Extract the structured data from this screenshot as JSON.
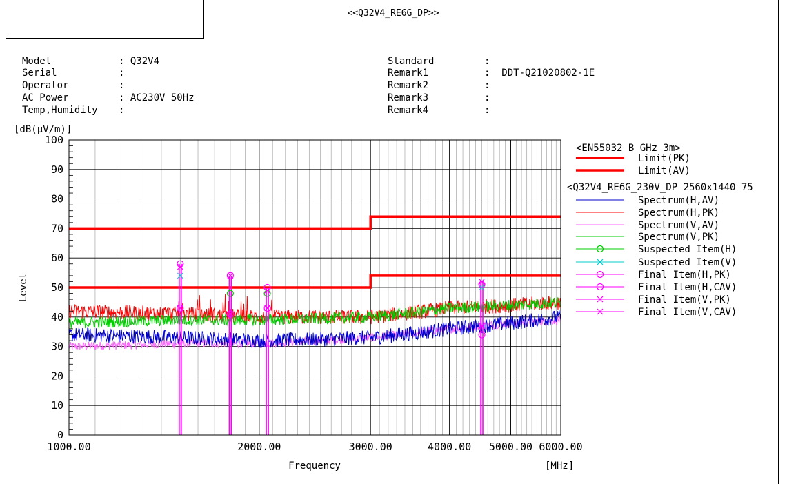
{
  "report": {
    "title": "<<Q32V4_RE6G_DP>>"
  },
  "info_left": [
    {
      "label": "Model",
      "value": ": Q32V4"
    },
    {
      "label": "Serial",
      "value": ":"
    },
    {
      "label": "Operator",
      "value": ":"
    },
    {
      "label": "AC Power",
      "value": ": AC230V 50Hz"
    },
    {
      "label": "Temp,Humidity",
      "value": ":"
    }
  ],
  "info_right": [
    {
      "label": "Standard",
      "value": ":"
    },
    {
      "label": "Remark1",
      "value": ":  DDT-Q21020802-1E"
    },
    {
      "label": "Remark2",
      "value": ":"
    },
    {
      "label": "Remark3",
      "value": ":"
    },
    {
      "label": "Remark4",
      "value": ":"
    }
  ],
  "colors": {
    "limit": "#ff0000",
    "spectrum_h_av": "#0000cc",
    "spectrum_h_pk": "#ff0000",
    "spectrum_v_av": "#ff66ff",
    "spectrum_v_pk": "#00cc00",
    "suspected_h": "#00cc00",
    "suspected_v": "#00cccc",
    "final": "#ff00ff"
  },
  "chart_data": {
    "type": "line",
    "x_scale": "log",
    "xlim": [
      1000,
      6000
    ],
    "ylim": [
      0,
      100
    ],
    "x_ticks": [
      1000,
      2000,
      3000,
      4000,
      5000,
      6000
    ],
    "x_tick_labels": [
      "1000.00",
      "2000.00",
      "3000.00",
      "4000.00",
      "5000.00",
      "6000.00"
    ],
    "y_ticks": [
      0,
      10,
      20,
      30,
      40,
      50,
      60,
      70,
      80,
      90,
      100
    ],
    "y_tick_labels": [
      "0",
      "10",
      "20",
      "30",
      "40",
      "50",
      "60",
      "70",
      "80",
      "90",
      "100"
    ],
    "xlabel": "Frequency",
    "xunit": "[MHz]",
    "ylabel": "Level",
    "yunit": "[dB(μV/m)]",
    "grid": true,
    "legend_position": "right",
    "legend_title": "<EN55032 B GHz 3m>",
    "legend_subtitle": "<Q32V4_RE6G_230V_DP 2560x1440 75",
    "limits": [
      {
        "name": "Limit(PK)",
        "points": [
          [
            1000,
            70
          ],
          [
            3000,
            70
          ],
          [
            3000,
            74
          ],
          [
            6000,
            74
          ]
        ]
      },
      {
        "name": "Limit(AV)",
        "points": [
          [
            1000,
            50
          ],
          [
            3000,
            50
          ],
          [
            3000,
            54
          ],
          [
            6000,
            54
          ]
        ]
      }
    ],
    "spectra": [
      {
        "name": "Spectrum(H,AV)",
        "color_key": "spectrum_h_av",
        "envelope": [
          [
            1000,
            34
          ],
          [
            1500,
            33
          ],
          [
            2000,
            32
          ],
          [
            3000,
            33
          ],
          [
            4000,
            36
          ],
          [
            5000,
            38
          ],
          [
            6000,
            40
          ]
        ],
        "noise": 2.5
      },
      {
        "name": "Spectrum(H,PK)",
        "color_key": "spectrum_h_pk",
        "envelope": [
          [
            1000,
            42
          ],
          [
            1500,
            41
          ],
          [
            2000,
            40
          ],
          [
            3000,
            40
          ],
          [
            4000,
            43
          ],
          [
            5000,
            44
          ],
          [
            6000,
            45
          ]
        ],
        "noise": 2.5
      },
      {
        "name": "Spectrum(V,AV)",
        "color_key": "spectrum_v_av",
        "envelope": [
          [
            1000,
            30
          ],
          [
            1500,
            31
          ],
          [
            2000,
            31
          ],
          [
            3000,
            33
          ],
          [
            4000,
            36
          ],
          [
            5000,
            38
          ],
          [
            6000,
            39
          ]
        ],
        "noise": 1.5
      },
      {
        "name": "Spectrum(V,PK)",
        "color_key": "spectrum_v_pk",
        "envelope": [
          [
            1000,
            38
          ],
          [
            1500,
            39
          ],
          [
            2000,
            39
          ],
          [
            3000,
            40
          ],
          [
            4000,
            43
          ],
          [
            5000,
            44
          ],
          [
            6000,
            45
          ]
        ],
        "noise": 2
      }
    ],
    "final_items": [
      {
        "freq": 1500,
        "h_pk": 58,
        "h_cav": 43,
        "v_pk": 57,
        "v_cav": 43,
        "suspected_v": 54
      },
      {
        "freq": 1800,
        "h_pk": 54,
        "h_cav": 41,
        "v_pk": 54,
        "v_cav": 41,
        "suspected_h": 48
      },
      {
        "freq": 2060,
        "h_pk": 50,
        "h_cav": 43,
        "v_pk": 49,
        "v_cav": 43,
        "suspected_h": 48
      },
      {
        "freq": 4500,
        "h_pk": 51,
        "h_cav": 34,
        "v_pk": 52,
        "v_cav": 37,
        "suspected_v": 50
      }
    ],
    "legend_items": [
      {
        "label": "Limit(PK)",
        "style": "limit",
        "color_key": "limit"
      },
      {
        "label": "Limit(AV)",
        "style": "limit",
        "color_key": "limit"
      },
      {
        "label": "Spectrum(H,AV)",
        "style": "line",
        "color_key": "spectrum_h_av"
      },
      {
        "label": "Spectrum(H,PK)",
        "style": "line",
        "color_key": "spectrum_h_pk"
      },
      {
        "label": "Spectrum(V,AV)",
        "style": "line",
        "color_key": "spectrum_v_av"
      },
      {
        "label": "Spectrum(V,PK)",
        "style": "line",
        "color_key": "spectrum_v_pk"
      },
      {
        "label": "Suspected Item(H)",
        "style": "circle",
        "color_key": "suspected_h"
      },
      {
        "label": "Suspected Item(V)",
        "style": "cross",
        "color_key": "suspected_v"
      },
      {
        "label": "Final Item(H,PK)",
        "style": "circle",
        "color_key": "final"
      },
      {
        "label": "Final Item(H,CAV)",
        "style": "circle",
        "color_key": "final"
      },
      {
        "label": "Final Item(V,PK)",
        "style": "cross",
        "color_key": "final"
      },
      {
        "label": "Final Item(V,CAV)",
        "style": "cross",
        "color_key": "final"
      }
    ]
  }
}
